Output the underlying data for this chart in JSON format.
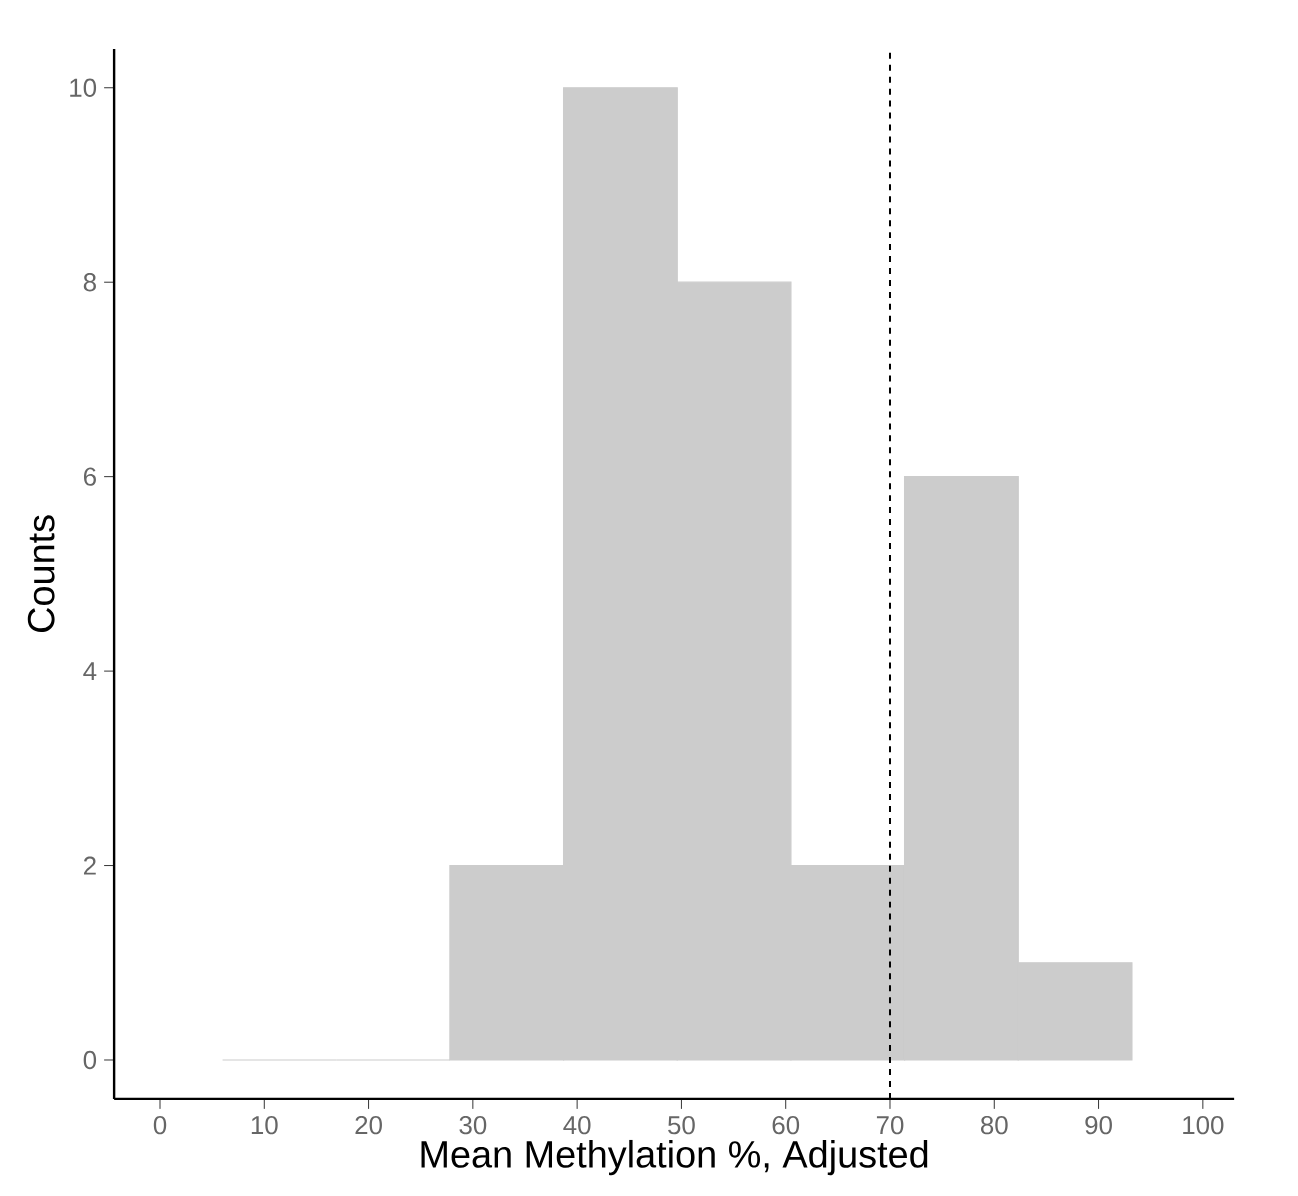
{
  "chart_data": {
    "type": "histogram",
    "xlabel": "Mean Methylation %, Adjusted",
    "ylabel": "Counts",
    "bins": [
      6,
      16.9,
      27.8,
      38.7,
      49.6,
      60.5,
      71.4,
      82.3,
      93.2
    ],
    "values": [
      0,
      0,
      2,
      10,
      8,
      2,
      6,
      1
    ],
    "color": "#cccccc",
    "xlim": [
      -4.4,
      103
    ],
    "ylim": [
      -0.4,
      10.4
    ],
    "xticks": [
      0,
      10,
      20,
      30,
      40,
      50,
      60,
      70,
      80,
      90,
      100
    ],
    "yticks": [
      0,
      2,
      4,
      6,
      8,
      10
    ],
    "ref_lines": [
      {
        "axis": "x",
        "value": 70,
        "line_style": "dashed",
        "color": "#000000"
      }
    ],
    "grid": false
  }
}
